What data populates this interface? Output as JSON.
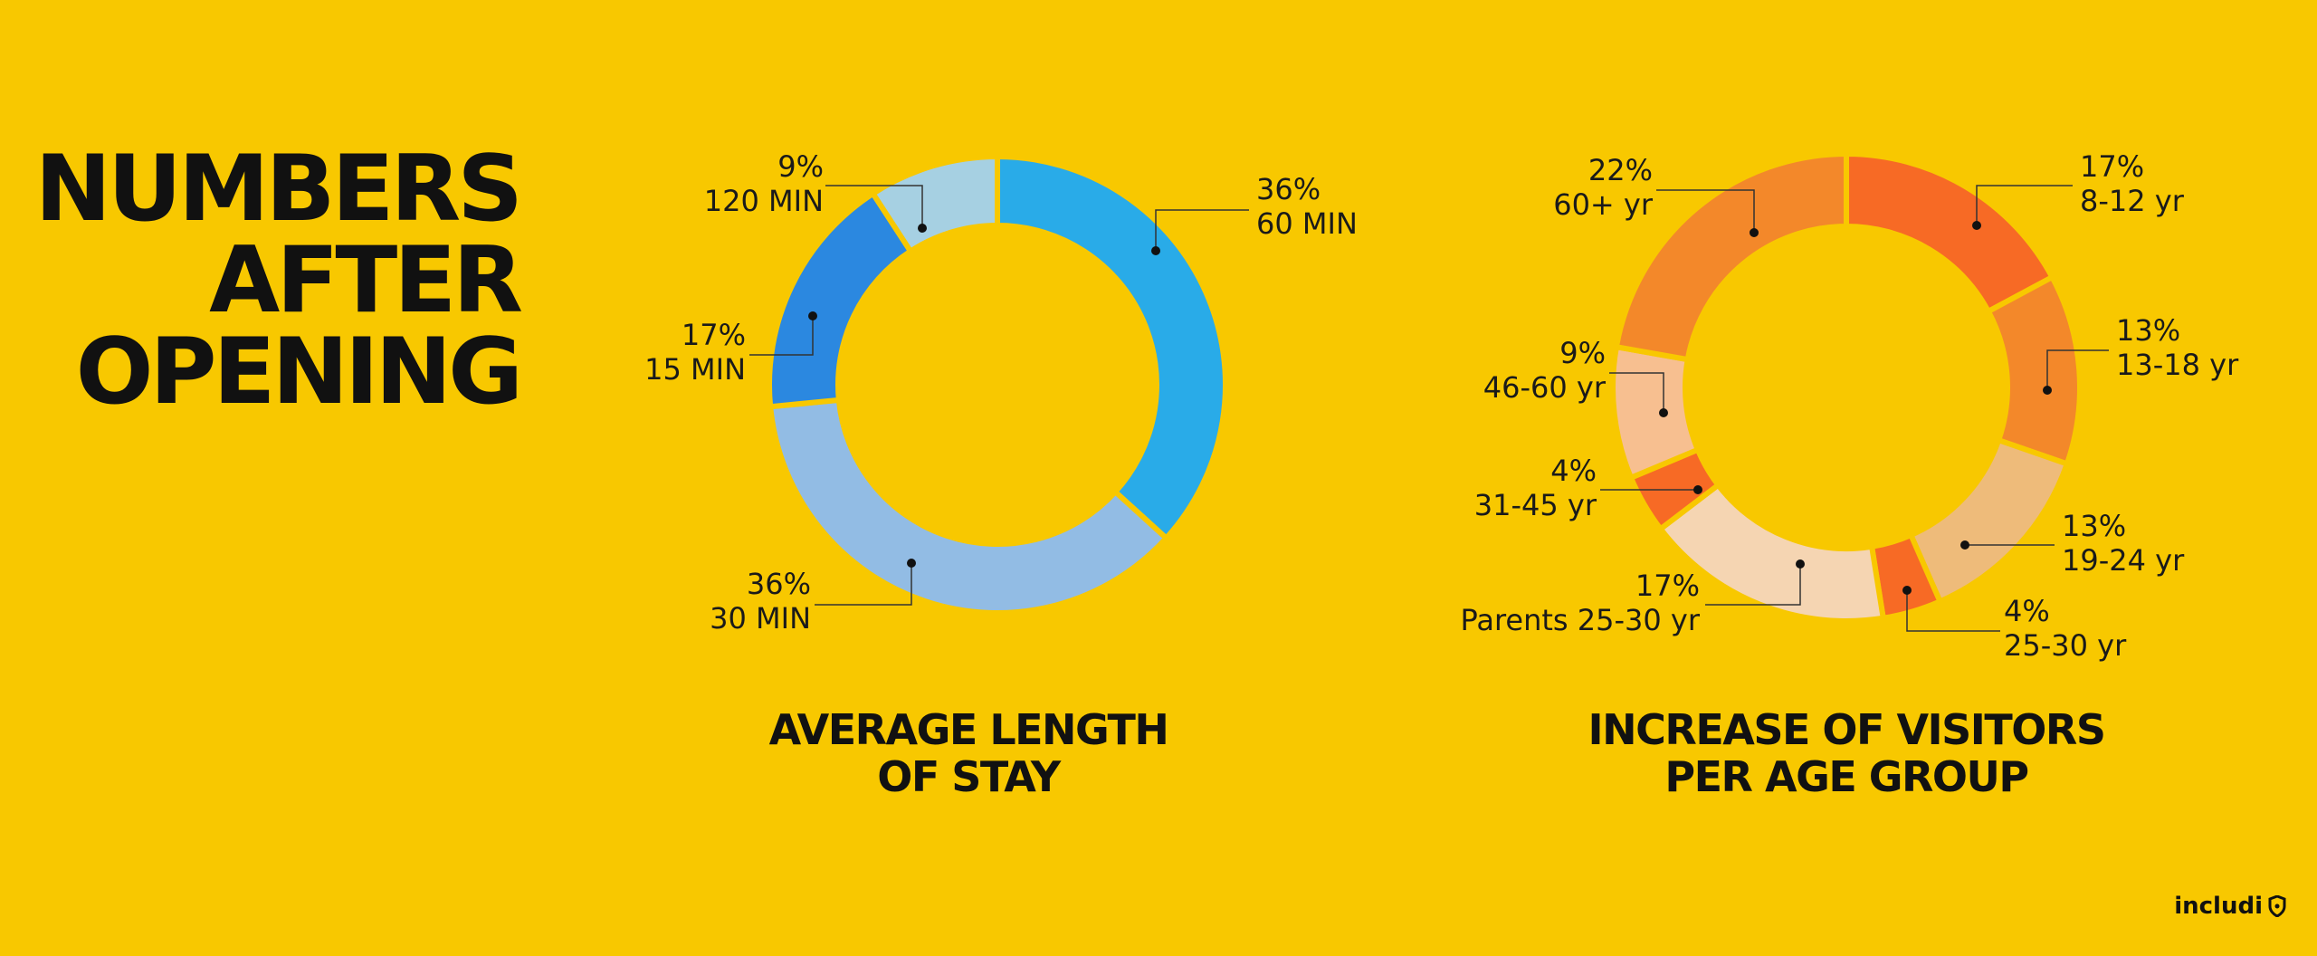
{
  "headline": {
    "line1": "NUMBERS",
    "line2": "AFTER",
    "line3": "OPENING"
  },
  "logo": {
    "text": "includi",
    "icon": "shield-icon"
  },
  "chart_data": [
    {
      "type": "donut",
      "title_line1": "AVERAGE LENGTH",
      "title_line2": "OF STAY",
      "slices": [
        {
          "percent": "36%",
          "label": "60 MIN",
          "value": 36,
          "color": "#29ABE8"
        },
        {
          "percent": "36%",
          "label": "30 MIN",
          "value": 36,
          "color": "#92BCE4"
        },
        {
          "percent": "17%",
          "label": "15 MIN",
          "value": 17,
          "color": "#2B88E0"
        },
        {
          "percent": "9%",
          "label": "120 MIN",
          "value": 9,
          "color": "#A6D0E2"
        }
      ]
    },
    {
      "type": "donut",
      "title_line1": "INCREASE OF VISITORS",
      "title_line2": "PER AGE GROUP",
      "slices": [
        {
          "percent": "17%",
          "label": "8-12 yr",
          "value": 17,
          "color": "#F76A25"
        },
        {
          "percent": "13%",
          "label": "13-18 yr",
          "value": 13,
          "color": "#F3882A"
        },
        {
          "percent": "13%",
          "label": "19-24 yr",
          "value": 13,
          "color": "#EEBB7A"
        },
        {
          "percent": "4%",
          "label": "25-30 yr",
          "value": 4,
          "color": "#F76A25"
        },
        {
          "percent": "17%",
          "label": "Parents 25-30 yr",
          "value": 17,
          "color": "#F5D5B2"
        },
        {
          "percent": "4%",
          "label": "31-45 yr",
          "value": 4,
          "color": "#F76A25"
        },
        {
          "percent": "9%",
          "label": "46-60 yr",
          "value": 9,
          "color": "#F7BF90"
        },
        {
          "percent": "22%",
          "label": "60+ yr",
          "value": 22,
          "color": "#F3882A"
        }
      ]
    }
  ]
}
